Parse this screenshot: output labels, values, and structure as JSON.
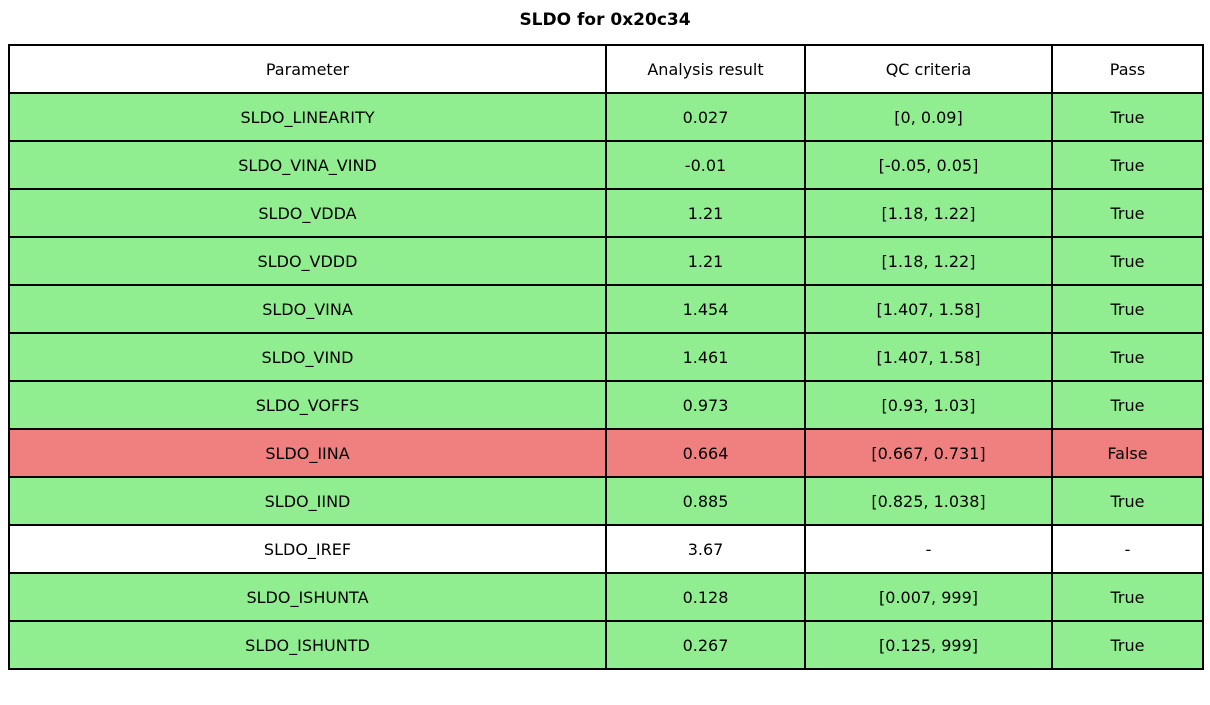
{
  "colors": {
    "pass": "#90ee90",
    "fail": "#f08080",
    "none": "#ffffff",
    "border": "#000000"
  },
  "chart_data": {
    "type": "table",
    "title": "SLDO for 0x20c34",
    "columns": [
      "Parameter",
      "Analysis result",
      "QC criteria",
      "Pass"
    ],
    "rows": [
      {
        "parameter": "SLDO_LINEARITY",
        "result": "0.027",
        "criteria": "[0, 0.09]",
        "pass": "True",
        "status": "pass"
      },
      {
        "parameter": "SLDO_VINA_VIND",
        "result": "-0.01",
        "criteria": "[-0.05, 0.05]",
        "pass": "True",
        "status": "pass"
      },
      {
        "parameter": "SLDO_VDDA",
        "result": "1.21",
        "criteria": "[1.18, 1.22]",
        "pass": "True",
        "status": "pass"
      },
      {
        "parameter": "SLDO_VDDD",
        "result": "1.21",
        "criteria": "[1.18, 1.22]",
        "pass": "True",
        "status": "pass"
      },
      {
        "parameter": "SLDO_VINA",
        "result": "1.454",
        "criteria": "[1.407, 1.58]",
        "pass": "True",
        "status": "pass"
      },
      {
        "parameter": "SLDO_VIND",
        "result": "1.461",
        "criteria": "[1.407, 1.58]",
        "pass": "True",
        "status": "pass"
      },
      {
        "parameter": "SLDO_VOFFS",
        "result": "0.973",
        "criteria": "[0.93, 1.03]",
        "pass": "True",
        "status": "pass"
      },
      {
        "parameter": "SLDO_IINA",
        "result": "0.664",
        "criteria": "[0.667, 0.731]",
        "pass": "False",
        "status": "fail"
      },
      {
        "parameter": "SLDO_IIND",
        "result": "0.885",
        "criteria": "[0.825, 1.038]",
        "pass": "True",
        "status": "pass"
      },
      {
        "parameter": "SLDO_IREF",
        "result": "3.67",
        "criteria": "-",
        "pass": "-",
        "status": "none"
      },
      {
        "parameter": "SLDO_ISHUNTA",
        "result": "0.128",
        "criteria": "[0.007, 999]",
        "pass": "True",
        "status": "pass"
      },
      {
        "parameter": "SLDO_ISHUNTD",
        "result": "0.267",
        "criteria": "[0.125, 999]",
        "pass": "True",
        "status": "pass"
      }
    ]
  }
}
